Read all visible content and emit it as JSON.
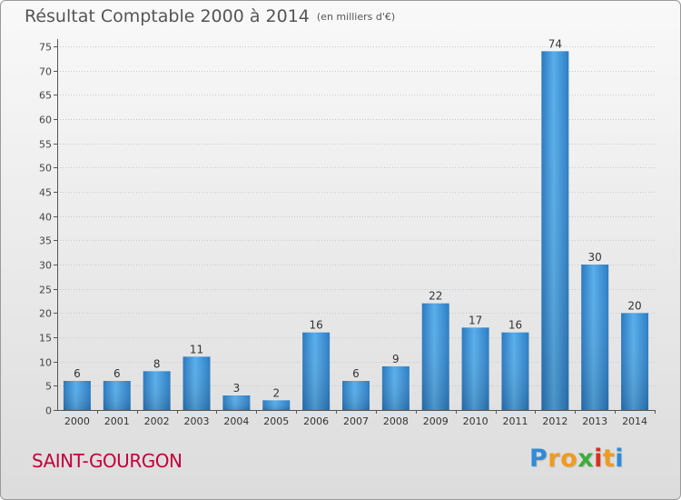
{
  "chart_data": {
    "type": "bar",
    "title": "Résultat Comptable 2000 à 2014",
    "units": "(en milliers d'€)",
    "categories": [
      "2000",
      "2001",
      "2002",
      "2003",
      "2004",
      "2005",
      "2006",
      "2007",
      "2008",
      "2009",
      "2010",
      "2011",
      "2012",
      "2013",
      "2014"
    ],
    "values": [
      6,
      6,
      8,
      11,
      3,
      2,
      16,
      6,
      9,
      22,
      17,
      16,
      74,
      30,
      20
    ],
    "ylim": [
      0,
      75
    ],
    "yticks": [
      0,
      5,
      10,
      15,
      20,
      25,
      30,
      35,
      40,
      45,
      50,
      55,
      60,
      65,
      70,
      75
    ],
    "grid": true,
    "xlabel": "",
    "ylabel": "",
    "bar_color": "#3d8fd4"
  },
  "footer": {
    "commune": "SAINT-GOURGON",
    "brand_letters": [
      "P",
      "r",
      "o",
      "x",
      "i",
      "t",
      "i"
    ],
    "brand_colors": [
      "#2e8bd8",
      "#f29a1d",
      "#f29a1d",
      "#3cae3c",
      "#d8321e",
      "#f29a1d",
      "#2e8bd8"
    ]
  }
}
